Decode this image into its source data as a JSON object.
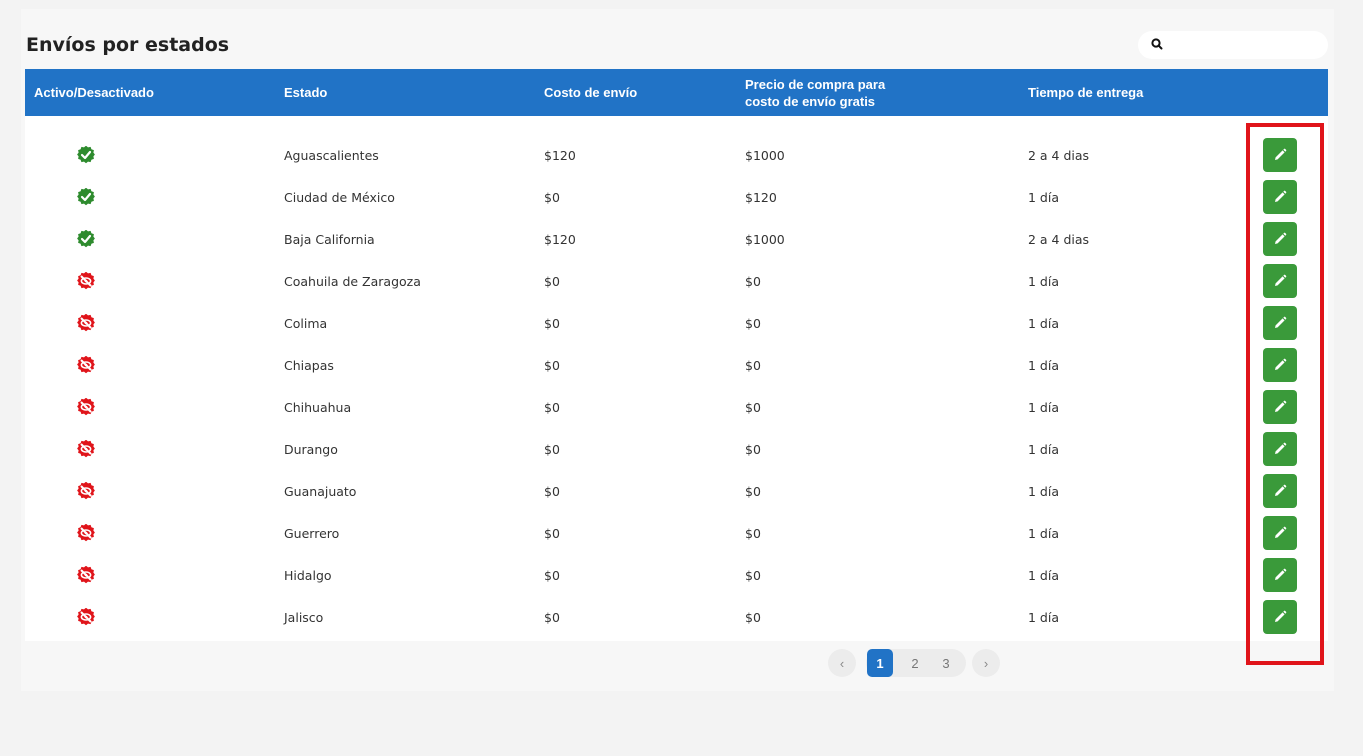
{
  "page": {
    "title": "Envíos por estados"
  },
  "search": {
    "placeholder": ""
  },
  "table": {
    "headers": {
      "status": "Activo/Desactivado",
      "state": "Estado",
      "cost": "Costo de envío",
      "free_line1": "Precio de compra para",
      "free_line2": "costo de envío gratis",
      "delivery": "Tiempo de entrega"
    },
    "rows": [
      {
        "active": true,
        "state": "Aguascalientes",
        "cost": "$120",
        "free": "$1000",
        "delivery": "2 a 4 dias"
      },
      {
        "active": true,
        "state": "Ciudad de México",
        "cost": "$0",
        "free": "$120",
        "delivery": "1 día"
      },
      {
        "active": true,
        "state": "Baja California",
        "cost": "$120",
        "free": "$1000",
        "delivery": "2 a 4 dias"
      },
      {
        "active": false,
        "state": "Coahuila de Zaragoza",
        "cost": "$0",
        "free": "$0",
        "delivery": "1 día"
      },
      {
        "active": false,
        "state": "Colima",
        "cost": "$0",
        "free": "$0",
        "delivery": "1 día"
      },
      {
        "active": false,
        "state": "Chiapas",
        "cost": "$0",
        "free": "$0",
        "delivery": "1 día"
      },
      {
        "active": false,
        "state": "Chihuahua",
        "cost": "$0",
        "free": "$0",
        "delivery": "1 día"
      },
      {
        "active": false,
        "state": "Durango",
        "cost": "$0",
        "free": "$0",
        "delivery": "1 día"
      },
      {
        "active": false,
        "state": "Guanajuato",
        "cost": "$0",
        "free": "$0",
        "delivery": "1 día"
      },
      {
        "active": false,
        "state": "Guerrero",
        "cost": "$0",
        "free": "$0",
        "delivery": "1 día"
      },
      {
        "active": false,
        "state": "Hidalgo",
        "cost": "$0",
        "free": "$0",
        "delivery": "1 día"
      },
      {
        "active": false,
        "state": "Jalisco",
        "cost": "$0",
        "free": "$0",
        "delivery": "1 día"
      }
    ]
  },
  "pagination": {
    "prev_label": "‹",
    "next_label": "›",
    "pages": [
      "1",
      "2",
      "3"
    ],
    "current_page": "1"
  },
  "colors": {
    "header_bg": "#2173c6",
    "active_icon": "#2e8b2e",
    "inactive_icon": "#e0141a",
    "edit_button": "#3a9a3a",
    "highlight_box": "#e0141a"
  },
  "icons": {
    "search": "search-icon",
    "active": "check-badge-icon",
    "inactive": "slashed-eye-icon",
    "edit": "pencil-icon"
  }
}
